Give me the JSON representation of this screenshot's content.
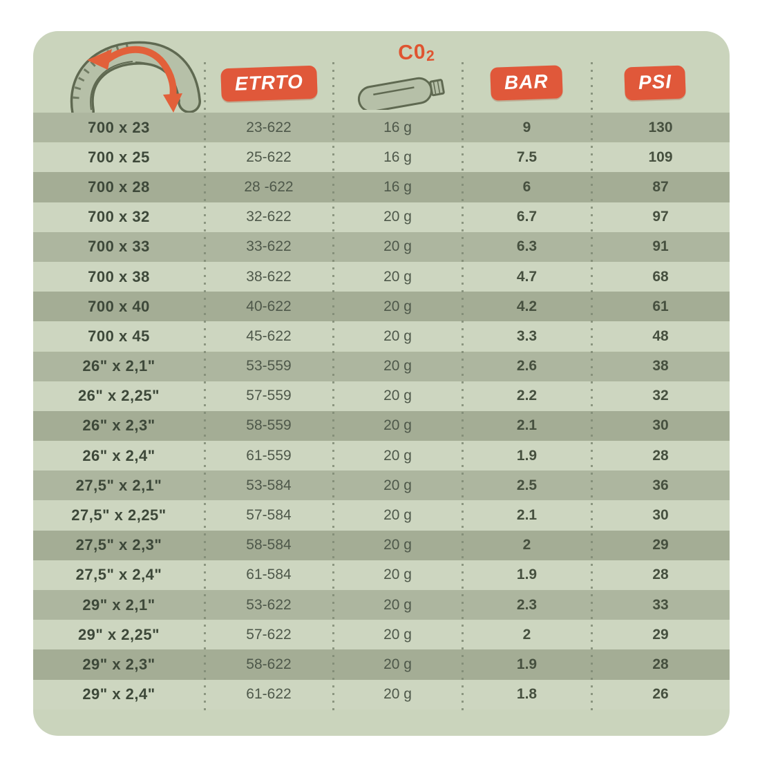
{
  "header": {
    "etrto_label": "ETRTO",
    "co2_label": "C0",
    "co2_label_sub": "2",
    "bar_label": "BAR",
    "psi_label": "PSI"
  },
  "chart_data": {
    "type": "table",
    "title": "Bike tire size vs CO2 cartridge and inflation pressure",
    "columns": [
      "tire-size",
      "ETRTO",
      "CO2-cartridge",
      "BAR",
      "PSI"
    ],
    "rows": [
      [
        "700 x 23",
        "23-622",
        "16 g",
        "9",
        "130"
      ],
      [
        "700 x 25",
        "25-622",
        "16 g",
        "7.5",
        "109"
      ],
      [
        "700 x 28",
        "28 -622",
        "16 g",
        "6",
        "87"
      ],
      [
        "700 x 32",
        "32-622",
        "20 g",
        "6.7",
        "97"
      ],
      [
        "700 x 33",
        "33-622",
        "20 g",
        "6.3",
        "91"
      ],
      [
        "700 x 38",
        "38-622",
        "20 g",
        "4.7",
        "68"
      ],
      [
        "700 x 40",
        "40-622",
        "20 g",
        "4.2",
        "61"
      ],
      [
        "700 x 45",
        "45-622",
        "20 g",
        "3.3",
        "48"
      ],
      [
        "26\" x 2,1\"",
        "53-559",
        "20 g",
        "2.6",
        "38"
      ],
      [
        "26\" x 2,25\"",
        "57-559",
        "20 g",
        "2.2",
        "32"
      ],
      [
        "26\" x 2,3\"",
        "58-559",
        "20 g",
        "2.1",
        "30"
      ],
      [
        "26\" x 2,4\"",
        "61-559",
        "20 g",
        "1.9",
        "28"
      ],
      [
        "27,5\" x 2,1\"",
        "53-584",
        "20 g",
        "2.5",
        "36"
      ],
      [
        "27,5\" x 2,25\"",
        "57-584",
        "20 g",
        "2.1",
        "30"
      ],
      [
        "27,5\" x 2,3\"",
        "58-584",
        "20 g",
        "2",
        "29"
      ],
      [
        "27,5\" x 2,4\"",
        "61-584",
        "20 g",
        "1.9",
        "28"
      ],
      [
        "29\" x 2,1\"",
        "53-622",
        "20 g",
        "2.3",
        "33"
      ],
      [
        "29\" x 2,25\"",
        "57-622",
        "20 g",
        "2",
        "29"
      ],
      [
        "29\" x 2,3\"",
        "58-622",
        "20 g",
        "1.9",
        "28"
      ],
      [
        "29\" x 2,4\"",
        "61-622",
        "20 g",
        "1.8",
        "26"
      ]
    ]
  },
  "colors": {
    "page_background": "#ffffff",
    "card_background": "#cad4bc",
    "row_light": "#cdd6c0",
    "row_dark": "#adb69f",
    "row_darker": "#a4ad95",
    "accent_orange": "#e0583a",
    "badge_text": "#ffffff",
    "text_dark": "#3d4839",
    "text_medium": "#4e584a",
    "dotted_line": "#7f8a74",
    "icon_fill": "#b6c0a8",
    "icon_outline": "#5f6951"
  }
}
